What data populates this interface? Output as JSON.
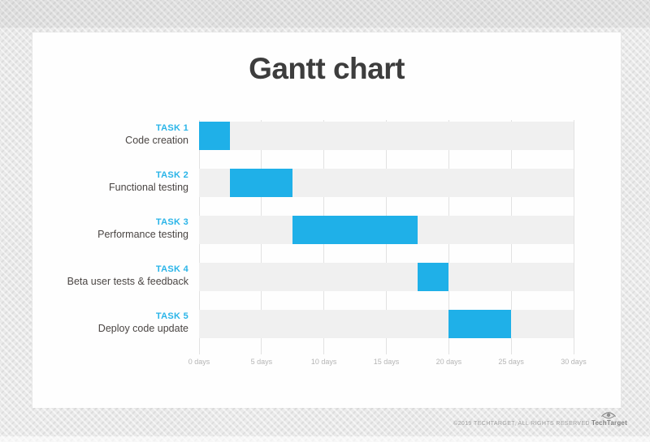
{
  "chart_data": {
    "type": "bar",
    "subtype": "gantt",
    "title": "Gantt chart",
    "xlim": [
      0,
      30
    ],
    "x_unit": "days",
    "grid": "vertical",
    "legend": "none",
    "x_ticks": [
      {
        "value": 0,
        "label": "0 days"
      },
      {
        "value": 5,
        "label": "5 days"
      },
      {
        "value": 10,
        "label": "10 days"
      },
      {
        "value": 15,
        "label": "15 days"
      },
      {
        "value": 20,
        "label": "20 days"
      },
      {
        "value": 25,
        "label": "25 days"
      },
      {
        "value": 30,
        "label": "30 days"
      }
    ],
    "tasks": [
      {
        "name": "TASK 1",
        "label": "Code creation",
        "start_days": 0,
        "end_days": 2.5
      },
      {
        "name": "TASK 2",
        "label": "Functional testing",
        "start_days": 2.5,
        "end_days": 7.5
      },
      {
        "name": "TASK 3",
        "label": "Performance testing",
        "start_days": 7.5,
        "end_days": 17.5
      },
      {
        "name": "TASK 4",
        "label": "Beta user tests & feedback",
        "start_days": 17.5,
        "end_days": 20
      },
      {
        "name": "TASK 5",
        "label": "Deploy code update",
        "start_days": 20,
        "end_days": 25
      }
    ],
    "colors": {
      "bar": "#1fb0e8",
      "task_name": "#29b4e8",
      "task_label": "#4a4543",
      "row_band": "#f0f0f0",
      "gridline": "#e2e2e2",
      "tick_label": "#b5b5b5",
      "title": "#3d3d3d"
    }
  },
  "footer": {
    "copyright": "©2019 TECHTARGET, ALL RIGHTS RESERVED",
    "brand": "TechTarget"
  }
}
